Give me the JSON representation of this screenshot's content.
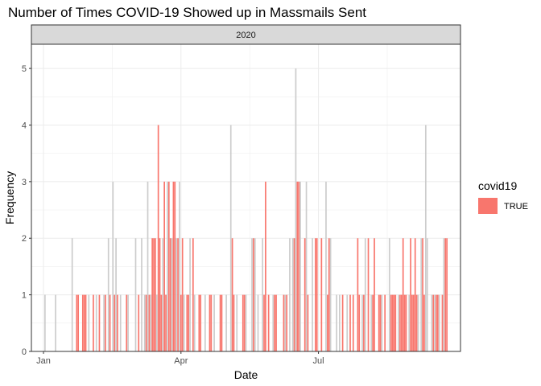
{
  "chart_data": {
    "type": "bar",
    "title": "Number of Times COVID-19 Showed up in Massmails Sent",
    "facet_label": "2020",
    "xlabel": "Date",
    "ylabel": "Frequency",
    "ylim": [
      0,
      5.3
    ],
    "y_ticks": [
      0,
      1,
      2,
      3,
      4,
      5
    ],
    "x_ticks": [
      {
        "date": "2020-01-01",
        "label": "Jan"
      },
      {
        "date": "2020-04-01",
        "label": "Apr"
      },
      {
        "date": "2020-07-01",
        "label": "Jul"
      }
    ],
    "xlim": [
      "2019-12-24",
      "2020-10-03"
    ],
    "grid": true,
    "legend": {
      "title": "covid19",
      "position": "right",
      "entries": [
        {
          "label": "TRUE",
          "color": "#F8766D"
        }
      ]
    },
    "colors": {
      "covid": "#F8766D",
      "other": "#CCCCCC"
    },
    "series": [
      {
        "name": "",
        "color": "#CCCCCC",
        "points": [
          {
            "x": "2020-01-02",
            "y": 1
          },
          {
            "x": "2020-01-09",
            "y": 1
          },
          {
            "x": "2020-01-20",
            "y": 2
          },
          {
            "x": "2020-01-31",
            "y": 1
          },
          {
            "x": "2020-02-05",
            "y": 1
          },
          {
            "x": "2020-02-10",
            "y": 1
          },
          {
            "x": "2020-02-13",
            "y": 2
          },
          {
            "x": "2020-02-16",
            "y": 3
          },
          {
            "x": "2020-02-18",
            "y": 2
          },
          {
            "x": "2020-02-21",
            "y": 1
          },
          {
            "x": "2020-02-26",
            "y": 1
          },
          {
            "x": "2020-03-02",
            "y": 2
          },
          {
            "x": "2020-03-06",
            "y": 2
          },
          {
            "x": "2020-03-08",
            "y": 1
          },
          {
            "x": "2020-03-10",
            "y": 3
          },
          {
            "x": "2020-03-12",
            "y": 1
          },
          {
            "x": "2020-03-16",
            "y": 1
          },
          {
            "x": "2020-03-20",
            "y": 2
          },
          {
            "x": "2020-03-23",
            "y": 3
          },
          {
            "x": "2020-03-26",
            "y": 2
          },
          {
            "x": "2020-03-29",
            "y": 2
          },
          {
            "x": "2020-03-31",
            "y": 3
          },
          {
            "x": "2020-04-03",
            "y": 1
          },
          {
            "x": "2020-04-07",
            "y": 2
          },
          {
            "x": "2020-04-10",
            "y": 1
          },
          {
            "x": "2020-04-17",
            "y": 1
          },
          {
            "x": "2020-04-23",
            "y": 1
          },
          {
            "x": "2020-05-01",
            "y": 1
          },
          {
            "x": "2020-05-04",
            "y": 4
          },
          {
            "x": "2020-05-08",
            "y": 1
          },
          {
            "x": "2020-05-14",
            "y": 1
          },
          {
            "x": "2020-05-18",
            "y": 2
          },
          {
            "x": "2020-05-20",
            "y": 2
          },
          {
            "x": "2020-05-22",
            "y": 1
          },
          {
            "x": "2020-05-25",
            "y": 2
          },
          {
            "x": "2020-06-01",
            "y": 1
          },
          {
            "x": "2020-06-09",
            "y": 1
          },
          {
            "x": "2020-06-12",
            "y": 2
          },
          {
            "x": "2020-06-14",
            "y": 2
          },
          {
            "x": "2020-06-16",
            "y": 5
          },
          {
            "x": "2020-06-19",
            "y": 3
          },
          {
            "x": "2020-06-23",
            "y": 3
          },
          {
            "x": "2020-06-27",
            "y": 2
          },
          {
            "x": "2020-07-06",
            "y": 3
          },
          {
            "x": "2020-07-09",
            "y": 2
          },
          {
            "x": "2020-07-13",
            "y": 1
          },
          {
            "x": "2020-07-15",
            "y": 1
          },
          {
            "x": "2020-07-20",
            "y": 1
          },
          {
            "x": "2020-07-30",
            "y": 1
          },
          {
            "x": "2020-08-01",
            "y": 2
          },
          {
            "x": "2020-08-05",
            "y": 1
          },
          {
            "x": "2020-08-12",
            "y": 1
          },
          {
            "x": "2020-08-17",
            "y": 2
          },
          {
            "x": "2020-08-23",
            "y": 1
          },
          {
            "x": "2020-08-30",
            "y": 1
          },
          {
            "x": "2020-09-05",
            "y": 1
          },
          {
            "x": "2020-09-07",
            "y": 2
          },
          {
            "x": "2020-09-10",
            "y": 4
          },
          {
            "x": "2020-09-11",
            "y": 2
          },
          {
            "x": "2020-09-14",
            "y": 1
          },
          {
            "x": "2020-09-16",
            "y": 1
          },
          {
            "x": "2020-09-19",
            "y": 1
          },
          {
            "x": "2020-09-22",
            "y": 2
          }
        ]
      },
      {
        "name": "TRUE",
        "color": "#F8766D",
        "points": [
          {
            "x": "2020-01-23",
            "y": 1
          },
          {
            "x": "2020-01-24",
            "y": 1
          },
          {
            "x": "2020-01-27",
            "y": 1
          },
          {
            "x": "2020-01-28",
            "y": 1
          },
          {
            "x": "2020-01-29",
            "y": 1
          },
          {
            "x": "2020-02-03",
            "y": 1
          },
          {
            "x": "2020-02-07",
            "y": 1
          },
          {
            "x": "2020-02-11",
            "y": 1
          },
          {
            "x": "2020-02-14",
            "y": 1
          },
          {
            "x": "2020-02-17",
            "y": 1
          },
          {
            "x": "2020-02-19",
            "y": 1
          },
          {
            "x": "2020-02-25",
            "y": 1
          },
          {
            "x": "2020-03-04",
            "y": 1
          },
          {
            "x": "2020-03-09",
            "y": 1
          },
          {
            "x": "2020-03-11",
            "y": 1
          },
          {
            "x": "2020-03-13",
            "y": 2
          },
          {
            "x": "2020-03-14",
            "y": 2
          },
          {
            "x": "2020-03-15",
            "y": 2
          },
          {
            "x": "2020-03-17",
            "y": 4
          },
          {
            "x": "2020-03-18",
            "y": 2
          },
          {
            "x": "2020-03-19",
            "y": 1
          },
          {
            "x": "2020-03-21",
            "y": 3
          },
          {
            "x": "2020-03-22",
            "y": 1
          },
          {
            "x": "2020-03-24",
            "y": 3
          },
          {
            "x": "2020-03-25",
            "y": 2
          },
          {
            "x": "2020-03-27",
            "y": 3
          },
          {
            "x": "2020-03-28",
            "y": 3
          },
          {
            "x": "2020-03-30",
            "y": 2
          },
          {
            "x": "2020-04-01",
            "y": 1
          },
          {
            "x": "2020-04-02",
            "y": 2
          },
          {
            "x": "2020-04-05",
            "y": 1
          },
          {
            "x": "2020-04-06",
            "y": 1
          },
          {
            "x": "2020-04-09",
            "y": 2
          },
          {
            "x": "2020-04-13",
            "y": 1
          },
          {
            "x": "2020-04-14",
            "y": 1
          },
          {
            "x": "2020-04-20",
            "y": 1
          },
          {
            "x": "2020-04-21",
            "y": 1
          },
          {
            "x": "2020-04-27",
            "y": 1
          },
          {
            "x": "2020-04-28",
            "y": 1
          },
          {
            "x": "2020-05-05",
            "y": 2
          },
          {
            "x": "2020-05-06",
            "y": 1
          },
          {
            "x": "2020-05-12",
            "y": 1
          },
          {
            "x": "2020-05-13",
            "y": 1
          },
          {
            "x": "2020-05-19",
            "y": 2
          },
          {
            "x": "2020-05-26",
            "y": 1
          },
          {
            "x": "2020-05-27",
            "y": 3
          },
          {
            "x": "2020-05-29",
            "y": 1
          },
          {
            "x": "2020-06-02",
            "y": 1
          },
          {
            "x": "2020-06-03",
            "y": 1
          },
          {
            "x": "2020-06-08",
            "y": 1
          },
          {
            "x": "2020-06-10",
            "y": 1
          },
          {
            "x": "2020-06-15",
            "y": 2
          },
          {
            "x": "2020-06-17",
            "y": 3
          },
          {
            "x": "2020-06-18",
            "y": 3
          },
          {
            "x": "2020-06-22",
            "y": 2
          },
          {
            "x": "2020-06-24",
            "y": 1
          },
          {
            "x": "2020-06-29",
            "y": 2
          },
          {
            "x": "2020-06-30",
            "y": 2
          },
          {
            "x": "2020-07-03",
            "y": 2
          },
          {
            "x": "2020-07-07",
            "y": 1
          },
          {
            "x": "2020-07-08",
            "y": 2
          },
          {
            "x": "2020-07-17",
            "y": 1
          },
          {
            "x": "2020-07-22",
            "y": 1
          },
          {
            "x": "2020-07-24",
            "y": 1
          },
          {
            "x": "2020-07-27",
            "y": 2
          },
          {
            "x": "2020-07-28",
            "y": 1
          },
          {
            "x": "2020-07-31",
            "y": 1
          },
          {
            "x": "2020-08-03",
            "y": 2
          },
          {
            "x": "2020-08-06",
            "y": 1
          },
          {
            "x": "2020-08-07",
            "y": 2
          },
          {
            "x": "2020-08-10",
            "y": 1
          },
          {
            "x": "2020-08-11",
            "y": 1
          },
          {
            "x": "2020-08-14",
            "y": 1
          },
          {
            "x": "2020-08-18",
            "y": 1
          },
          {
            "x": "2020-08-19",
            "y": 1
          },
          {
            "x": "2020-08-20",
            "y": 1
          },
          {
            "x": "2020-08-21",
            "y": 1
          },
          {
            "x": "2020-08-24",
            "y": 1
          },
          {
            "x": "2020-08-25",
            "y": 1
          },
          {
            "x": "2020-08-26",
            "y": 2
          },
          {
            "x": "2020-08-27",
            "y": 1
          },
          {
            "x": "2020-08-28",
            "y": 1
          },
          {
            "x": "2020-08-31",
            "y": 2
          },
          {
            "x": "2020-09-01",
            "y": 1
          },
          {
            "x": "2020-09-02",
            "y": 1
          },
          {
            "x": "2020-09-03",
            "y": 2
          },
          {
            "x": "2020-09-04",
            "y": 1
          },
          {
            "x": "2020-09-08",
            "y": 2
          },
          {
            "x": "2020-09-09",
            "y": 1
          },
          {
            "x": "2020-09-15",
            "y": 1
          },
          {
            "x": "2020-09-17",
            "y": 1
          },
          {
            "x": "2020-09-18",
            "y": 1
          },
          {
            "x": "2020-09-21",
            "y": 1
          },
          {
            "x": "2020-09-23",
            "y": 2
          },
          {
            "x": "2020-09-24",
            "y": 2
          }
        ]
      }
    ]
  }
}
